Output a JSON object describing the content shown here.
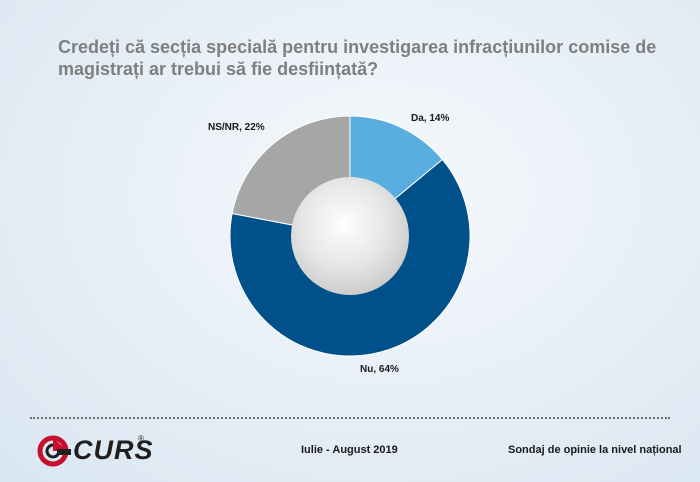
{
  "chart_data": {
    "type": "pie",
    "title": "Credeți că secția specială pentru investigarea infracțiunilor comise de magistrați ar trebui să fie desființată?",
    "slices": [
      {
        "label": "Da",
        "value": 14,
        "display": "Da, 14%",
        "color": "#5aaddf"
      },
      {
        "label": "Nu",
        "value": 64,
        "display": "Nu, 64%",
        "color": "#00508a"
      },
      {
        "label": "NS/NR",
        "value": 22,
        "display": "NS/NR, 22%",
        "color": "#a6a6a6"
      }
    ]
  },
  "footer": {
    "logo": "CURS",
    "logo_reg": "®",
    "period": "Iulie - August 2019",
    "source": "Sondaj de opinie la nivel național"
  }
}
